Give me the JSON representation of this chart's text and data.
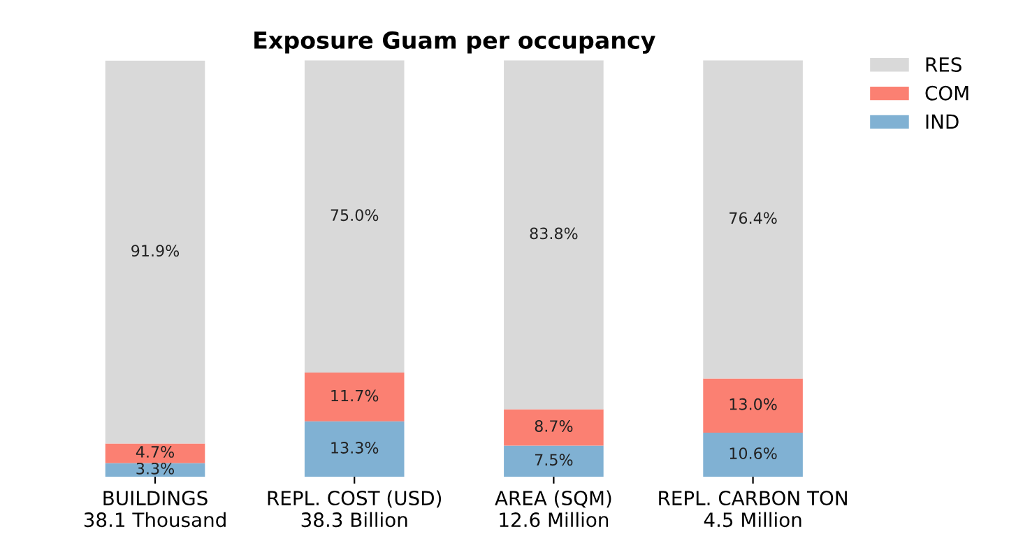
{
  "chart_data": {
    "type": "bar",
    "title": "Exposure Guam per occupancy",
    "stacked": true,
    "legend": "top right",
    "categories": [
      "BUILDINGS\n38.1 Thousand",
      "REPL. COST (USD)\n38.3 Billion",
      "AREA (SQM)\n12.6 Million",
      "REPL. CARBON TON\n4.5 Million"
    ],
    "series": [
      {
        "name": "IND",
        "color": "#80b1d3",
        "values": [
          3.3,
          13.3,
          7.5,
          10.6
        ],
        "value_labels": [
          "3.3%",
          "13.3%",
          "7.5%",
          "10.6%"
        ]
      },
      {
        "name": "COM",
        "color": "#fb8072",
        "values": [
          4.7,
          11.7,
          8.7,
          13.0
        ],
        "value_labels": [
          "4.7%",
          "11.7%",
          "8.7%",
          "13.0%"
        ]
      },
      {
        "name": "RES",
        "color": "#d9d9d9",
        "values": [
          91.9,
          75.0,
          83.8,
          76.4
        ],
        "value_labels": [
          "91.9%",
          "75.0%",
          "83.8%",
          "76.4%"
        ]
      }
    ]
  }
}
